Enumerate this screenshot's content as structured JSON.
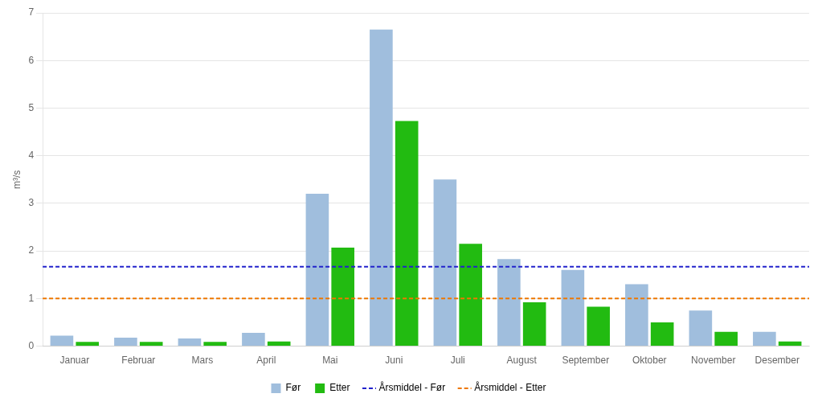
{
  "chart_data": {
    "type": "bar",
    "categories": [
      "Januar",
      "Februar",
      "Mars",
      "April",
      "Mai",
      "Juni",
      "Juli",
      "August",
      "September",
      "Oktober",
      "November",
      "Desember"
    ],
    "series": [
      {
        "name": "Før",
        "color": "#a0bedd",
        "values": [
          0.22,
          0.18,
          0.16,
          0.28,
          3.2,
          6.65,
          3.5,
          1.83,
          1.6,
          1.3,
          0.75,
          0.3
        ]
      },
      {
        "name": "Etter",
        "color": "#22bb11",
        "values": [
          0.09,
          0.09,
          0.09,
          0.1,
          2.07,
          4.73,
          2.15,
          0.92,
          0.83,
          0.5,
          0.3,
          0.1
        ]
      }
    ],
    "reference_lines": [
      {
        "name": "Årsmiddel - Før",
        "value": 1.67,
        "color": "#2222cc",
        "line_style": "dashed"
      },
      {
        "name": "Årsmiddel - Etter",
        "value": 1.0,
        "color": "#ee7700",
        "line_style": "dashed"
      }
    ],
    "ylabel": "m³/s",
    "ylim": [
      0,
      7
    ],
    "yticks": [
      0,
      1,
      2,
      3,
      4,
      5,
      6,
      7
    ],
    "grid": true,
    "legend": "bottom"
  }
}
